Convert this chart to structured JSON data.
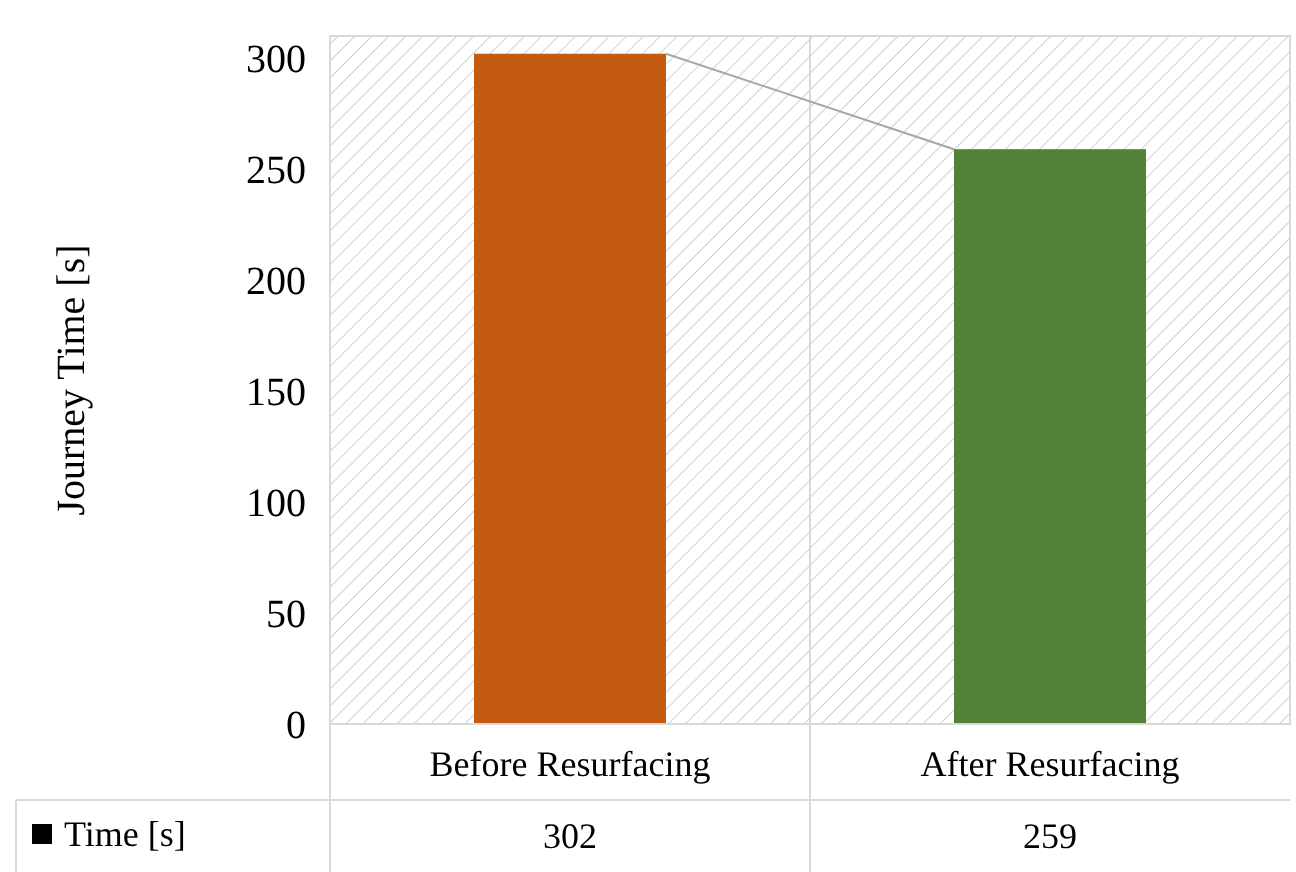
{
  "chart_data": {
    "type": "bar",
    "ylabel": "Journey Time [s]",
    "categories": [
      "Before Resurfacing",
      "After Resurfacing"
    ],
    "series": [
      {
        "name": "Time [s]",
        "colors": [
          "#c55a11",
          "#538135"
        ],
        "values": [
          302,
          259
        ]
      }
    ],
    "ylim": [
      0,
      310
    ],
    "yticks": [
      0,
      50,
      100,
      150,
      200,
      250,
      300
    ],
    "data_labels": true,
    "legend": "bottom left"
  }
}
